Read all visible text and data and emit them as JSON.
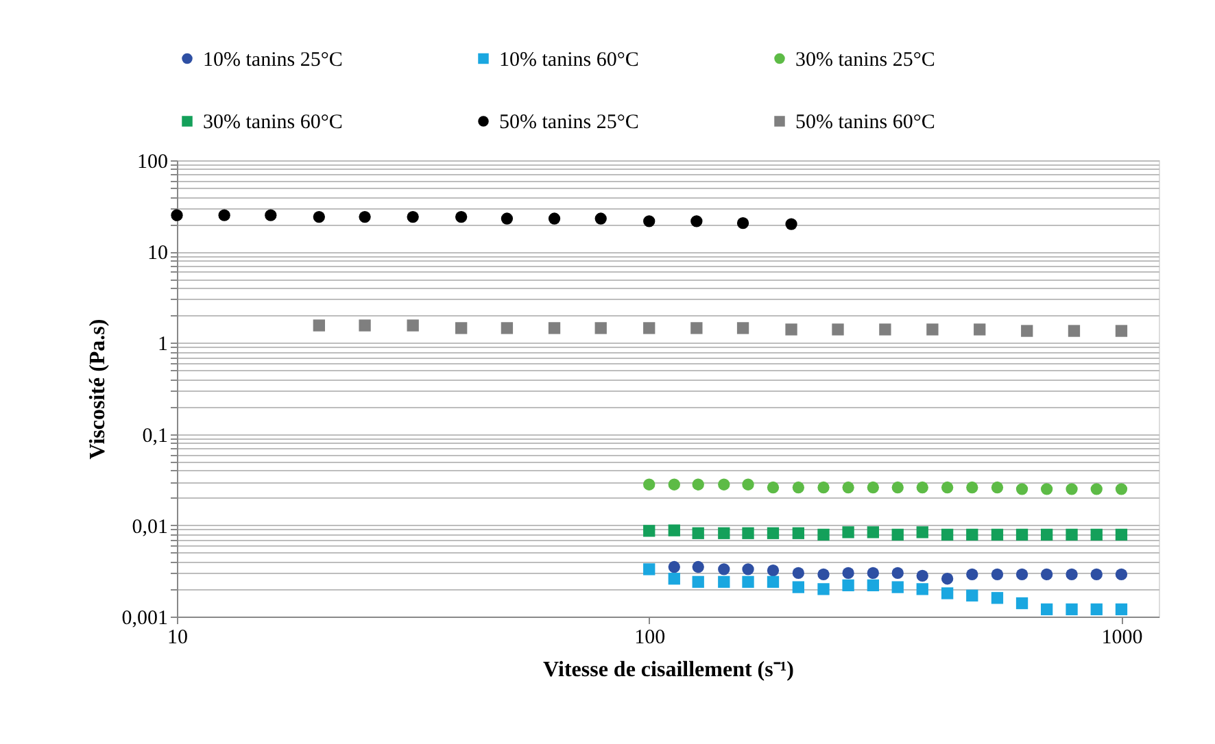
{
  "chart_data": {
    "type": "scatter",
    "xlabel": "Vitesse de cisaillement (s⁻¹)",
    "ylabel": "Viscosité (Pa.s)",
    "log": "xy",
    "grid": "y",
    "legend": "top",
    "xlim": [
      10,
      1200
    ],
    "xticks": [
      10,
      100,
      1000
    ],
    "ylim": [
      0.001,
      100
    ],
    "yticks": [
      {
        "value": 0.001,
        "label": "0,001"
      },
      {
        "value": 0.002,
        "label": null
      },
      {
        "value": 0.003,
        "label": null
      },
      {
        "value": 0.004,
        "label": null
      },
      {
        "value": 0.005,
        "label": null
      },
      {
        "value": 0.006,
        "label": null
      },
      {
        "value": 0.007,
        "label": null
      },
      {
        "value": 0.008,
        "label": null
      },
      {
        "value": 0.009,
        "label": null
      },
      {
        "value": 0.01,
        "label": "0,01"
      },
      {
        "value": 0.02,
        "label": null
      },
      {
        "value": 0.03,
        "label": null
      },
      {
        "value": 0.04,
        "label": null
      },
      {
        "value": 0.05,
        "label": null
      },
      {
        "value": 0.06,
        "label": null
      },
      {
        "value": 0.07,
        "label": null
      },
      {
        "value": 0.08,
        "label": null
      },
      {
        "value": 0.09,
        "label": null
      },
      {
        "value": 0.1,
        "label": "0,1"
      },
      {
        "value": 0.2,
        "label": null
      },
      {
        "value": 0.3,
        "label": null
      },
      {
        "value": 0.4,
        "label": null
      },
      {
        "value": 0.5,
        "label": null
      },
      {
        "value": 0.6,
        "label": null
      },
      {
        "value": 0.7,
        "label": null
      },
      {
        "value": 0.8,
        "label": null
      },
      {
        "value": 0.9,
        "label": null
      },
      1,
      {
        "value": 2,
        "label": null
      },
      {
        "value": 3,
        "label": null
      },
      {
        "value": 4,
        "label": null
      },
      {
        "value": 5,
        "label": null
      },
      {
        "value": 6,
        "label": null
      },
      {
        "value": 7,
        "label": null
      },
      {
        "value": 8,
        "label": null
      },
      {
        "value": 9,
        "label": null
      },
      10,
      {
        "value": 20,
        "label": null
      },
      {
        "value": 30,
        "label": null
      },
      {
        "value": 40,
        "label": null
      },
      {
        "value": 50,
        "label": null
      },
      {
        "value": 60,
        "label": null
      },
      {
        "value": 70,
        "label": null
      },
      {
        "value": 80,
        "label": null
      },
      {
        "value": 90,
        "label": null
      },
      100
    ],
    "series": [
      {
        "name": "10% tanins 25°C",
        "color": "#2e4fa3",
        "marker": "circle",
        "x": [
          113,
          127,
          144,
          162,
          183,
          207,
          234,
          264,
          298,
          336,
          379,
          428,
          483,
          546,
          616,
          695,
          785,
          886,
          1000
        ],
        "values": [
          0.0035,
          0.0035,
          0.0033,
          0.0033,
          0.0032,
          0.003,
          0.0029,
          0.003,
          0.003,
          0.003,
          0.0028,
          0.0026,
          0.0029,
          0.0029,
          0.0029,
          0.0029,
          0.0029,
          0.0029,
          0.0029
        ]
      },
      {
        "name": "10% tanins 60°C",
        "color": "#1aa7e0",
        "marker": "square",
        "x": [
          100,
          113,
          127,
          144,
          162,
          183,
          207,
          234,
          264,
          298,
          336,
          379,
          428,
          483,
          546,
          616,
          695,
          785,
          886,
          1000
        ],
        "values": [
          0.0033,
          0.0026,
          0.0024,
          0.0024,
          0.0024,
          0.0024,
          0.0021,
          0.002,
          0.0022,
          0.0022,
          0.0021,
          0.002,
          0.0018,
          0.0017,
          0.0016,
          0.0014,
          0.0012,
          0.0012,
          0.0012,
          0.0012
        ]
      },
      {
        "name": "30% tanins 25°C",
        "color": "#5dbb46",
        "marker": "circle",
        "x": [
          100,
          113,
          127,
          144,
          162,
          183,
          207,
          234,
          264,
          298,
          336,
          379,
          428,
          483,
          546,
          616,
          695,
          785,
          886,
          1000
        ],
        "values": [
          0.028,
          0.028,
          0.028,
          0.028,
          0.028,
          0.026,
          0.026,
          0.026,
          0.026,
          0.026,
          0.026,
          0.026,
          0.026,
          0.026,
          0.026,
          0.025,
          0.025,
          0.025,
          0.025,
          0.025
        ]
      },
      {
        "name": "30% tanins 60°C",
        "color": "#14a05a",
        "marker": "square",
        "x": [
          100,
          113,
          127,
          144,
          162,
          183,
          207,
          234,
          264,
          298,
          336,
          379,
          428,
          483,
          546,
          616,
          695,
          785,
          886,
          1000
        ],
        "values": [
          0.0087,
          0.0088,
          0.0082,
          0.0082,
          0.0082,
          0.0082,
          0.0082,
          0.0079,
          0.0084,
          0.0084,
          0.0079,
          0.0084,
          0.0079,
          0.0079,
          0.0079,
          0.0079,
          0.0079,
          0.0079,
          0.0079,
          0.0079
        ]
      },
      {
        "name": "50% tanins 25°C",
        "color": "#000000",
        "marker": "circle",
        "x": [
          10,
          12.6,
          15.8,
          20,
          25,
          31.6,
          40,
          50,
          63,
          79,
          100,
          126,
          158,
          200
        ],
        "values": [
          25,
          25,
          25,
          24,
          24,
          24,
          24,
          23,
          23,
          23,
          21.5,
          21.5,
          20.5,
          20
        ]
      },
      {
        "name": "50% tanins 60°C",
        "color": "#7f7f7f",
        "marker": "square",
        "x": [
          20,
          25,
          31.6,
          40,
          50,
          63,
          79,
          100,
          126,
          158,
          200,
          251,
          316,
          398,
          501,
          631,
          794,
          1000
        ],
        "values": [
          1.55,
          1.55,
          1.55,
          1.45,
          1.45,
          1.45,
          1.45,
          1.45,
          1.45,
          1.45,
          1.4,
          1.4,
          1.4,
          1.4,
          1.4,
          1.35,
          1.35,
          1.35
        ]
      }
    ]
  }
}
